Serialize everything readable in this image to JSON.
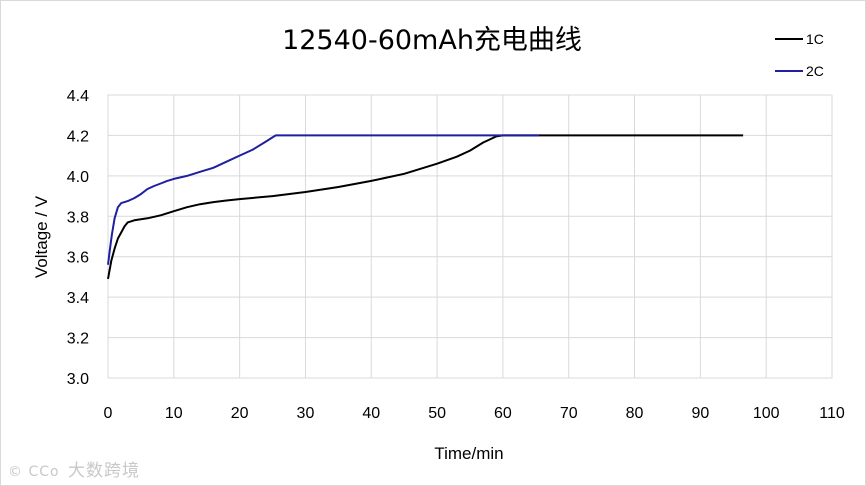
{
  "chart_data": {
    "type": "line",
    "title": "12540-60mAh充电曲线",
    "xlabel": "Time/min",
    "ylabel": "Voltage / V",
    "xlim": [
      0,
      110
    ],
    "ylim": [
      3.0,
      4.4
    ],
    "xticks": [
      0,
      10,
      20,
      30,
      40,
      50,
      60,
      70,
      80,
      90,
      100,
      110
    ],
    "yticks": [
      "3.0",
      "3.2",
      "3.4",
      "3.6",
      "3.8",
      "4.0",
      "4.2",
      "4.4"
    ],
    "grid": true,
    "legend_position": "top-right",
    "series": [
      {
        "name": "1C",
        "color": "#000000",
        "points": [
          [
            0,
            3.49
          ],
          [
            0.5,
            3.58
          ],
          [
            1,
            3.64
          ],
          [
            1.5,
            3.69
          ],
          [
            2,
            3.72
          ],
          [
            2.5,
            3.75
          ],
          [
            3,
            3.77
          ],
          [
            4,
            3.78
          ],
          [
            5,
            3.785
          ],
          [
            6,
            3.79
          ],
          [
            8,
            3.805
          ],
          [
            10,
            3.825
          ],
          [
            12,
            3.845
          ],
          [
            14,
            3.86
          ],
          [
            16,
            3.87
          ],
          [
            18,
            3.878
          ],
          [
            20,
            3.885
          ],
          [
            25,
            3.9
          ],
          [
            30,
            3.92
          ],
          [
            35,
            3.945
          ],
          [
            40,
            3.975
          ],
          [
            45,
            4.01
          ],
          [
            50,
            4.06
          ],
          [
            53,
            4.095
          ],
          [
            55,
            4.125
          ],
          [
            57,
            4.165
          ],
          [
            58,
            4.18
          ],
          [
            59,
            4.195
          ],
          [
            60,
            4.2
          ],
          [
            70,
            4.2
          ],
          [
            80,
            4.2
          ],
          [
            90,
            4.2
          ],
          [
            96.5,
            4.2
          ]
        ]
      },
      {
        "name": "2C",
        "color": "#1f1fa0",
        "points": [
          [
            0,
            3.56
          ],
          [
            0.3,
            3.64
          ],
          [
            0.6,
            3.71
          ],
          [
            1,
            3.79
          ],
          [
            1.5,
            3.845
          ],
          [
            2,
            3.865
          ],
          [
            2.5,
            3.87
          ],
          [
            3,
            3.875
          ],
          [
            4,
            3.89
          ],
          [
            5,
            3.91
          ],
          [
            6,
            3.935
          ],
          [
            7,
            3.95
          ],
          [
            8,
            3.962
          ],
          [
            9,
            3.975
          ],
          [
            10,
            3.985
          ],
          [
            12,
            4.0
          ],
          [
            14,
            4.02
          ],
          [
            16,
            4.04
          ],
          [
            18,
            4.07
          ],
          [
            20,
            4.1
          ],
          [
            22,
            4.13
          ],
          [
            24,
            4.17
          ],
          [
            25,
            4.19
          ],
          [
            25.5,
            4.2
          ],
          [
            30,
            4.2
          ],
          [
            40,
            4.2
          ],
          [
            50,
            4.2
          ],
          [
            60,
            4.2
          ],
          [
            65.5,
            4.2
          ]
        ]
      }
    ]
  },
  "watermark": {
    "logo": "© CCo",
    "text": "大数跨境"
  }
}
